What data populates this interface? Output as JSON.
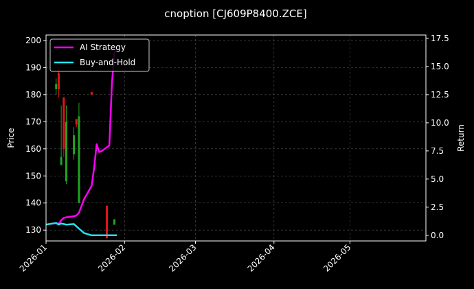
{
  "chart_data": {
    "type": "line",
    "title": "cnoption [CJ609P8400.ZCE]",
    "ylabel_left": "Price",
    "ylabel_right": "Return",
    "x_ticks": [
      {
        "date": "2026-01-01",
        "label": "2026-01"
      },
      {
        "date": "2026-02-01",
        "label": "2026-02"
      },
      {
        "date": "2026-03-01",
        "label": "2026-03"
      },
      {
        "date": "2026-04-01",
        "label": "2026-04"
      },
      {
        "date": "2026-05-01",
        "label": "2026-05"
      }
    ],
    "xlim": [
      "2026-01-01",
      "2026-05-31"
    ],
    "ylim_left": [
      126,
      202
    ],
    "ylim_right": [
      -0.5,
      17.8
    ],
    "yticks_left": [
      130,
      140,
      150,
      160,
      170,
      180,
      190,
      200
    ],
    "yticks_right": [
      0.0,
      2.5,
      5.0,
      7.5,
      10.0,
      12.5,
      15.0,
      17.5
    ],
    "grid": true,
    "legend_position": "top-left",
    "candles": [
      {
        "date": "2026-01-05",
        "open": 184,
        "close": 182,
        "high": 186,
        "low": 180,
        "color": "green"
      },
      {
        "date": "2026-01-06",
        "open": 188,
        "close": 182,
        "high": 190,
        "low": 179,
        "color": "red"
      },
      {
        "date": "2026-01-07",
        "open": 154,
        "close": 157,
        "high": 176,
        "low": 154,
        "color": "green"
      },
      {
        "date": "2026-01-08",
        "open": 179,
        "close": 160,
        "high": 179,
        "low": 157,
        "color": "red"
      },
      {
        "date": "2026-01-09",
        "open": 148,
        "close": 170,
        "high": 176,
        "low": 147,
        "color": "green"
      },
      {
        "date": "2026-01-12",
        "open": 158,
        "close": 165,
        "high": 168,
        "low": 156,
        "color": "green"
      },
      {
        "date": "2026-01-13",
        "open": 171,
        "close": 169,
        "high": 171,
        "low": 168,
        "color": "red"
      },
      {
        "date": "2026-01-14",
        "open": 140,
        "close": 172,
        "high": 177,
        "low": 140,
        "color": "green"
      },
      {
        "date": "2026-01-19",
        "open": 181,
        "close": 180,
        "high": 181,
        "low": 180,
        "color": "red"
      },
      {
        "date": "2026-01-25",
        "open": 139,
        "close": 127,
        "high": 139,
        "low": 127,
        "color": "red"
      },
      {
        "date": "2026-01-28",
        "open": 132,
        "close": 134,
        "high": 134,
        "low": 132,
        "color": "green"
      }
    ],
    "series": [
      {
        "name": "AI Strategy",
        "color": "#ff00ff",
        "points": [
          [
            "2026-01-01",
            0.95
          ],
          [
            "2026-01-05",
            1.1
          ],
          [
            "2026-01-06",
            1.0
          ],
          [
            "2026-01-07",
            1.35
          ],
          [
            "2026-01-08",
            1.55
          ],
          [
            "2026-01-09",
            1.6
          ],
          [
            "2026-01-12",
            1.7
          ],
          [
            "2026-01-13",
            1.75
          ],
          [
            "2026-01-14",
            2.0
          ],
          [
            "2026-01-15",
            2.6
          ],
          [
            "2026-01-16",
            3.2
          ],
          [
            "2026-01-19",
            4.4
          ],
          [
            "2026-01-20",
            6.0
          ],
          [
            "2026-01-21",
            8.1
          ],
          [
            "2026-01-22",
            7.4
          ],
          [
            "2026-01-23",
            7.5
          ],
          [
            "2026-01-26",
            8.0
          ],
          [
            "2026-01-27",
            13.5
          ],
          [
            "2026-01-28",
            16.2
          ],
          [
            "2026-01-29",
            16.6
          ]
        ]
      },
      {
        "name": "Buy-and-Hold",
        "color": "#22e5f0",
        "points": [
          [
            "2026-01-01",
            0.95
          ],
          [
            "2026-01-05",
            1.1
          ],
          [
            "2026-01-06",
            0.95
          ],
          [
            "2026-01-07",
            1.05
          ],
          [
            "2026-01-08",
            1.0
          ],
          [
            "2026-01-09",
            0.95
          ],
          [
            "2026-01-12",
            1.0
          ],
          [
            "2026-01-13",
            0.8
          ],
          [
            "2026-01-14",
            0.6
          ],
          [
            "2026-01-15",
            0.4
          ],
          [
            "2026-01-16",
            0.2
          ],
          [
            "2026-01-19",
            0.0
          ],
          [
            "2026-01-20",
            0.0
          ],
          [
            "2026-01-21",
            0.0
          ],
          [
            "2026-01-22",
            0.0
          ],
          [
            "2026-01-23",
            0.0
          ],
          [
            "2026-01-26",
            0.0
          ],
          [
            "2026-01-27",
            0.0
          ],
          [
            "2026-01-28",
            0.0
          ],
          [
            "2026-01-29",
            0.0
          ]
        ]
      }
    ]
  }
}
